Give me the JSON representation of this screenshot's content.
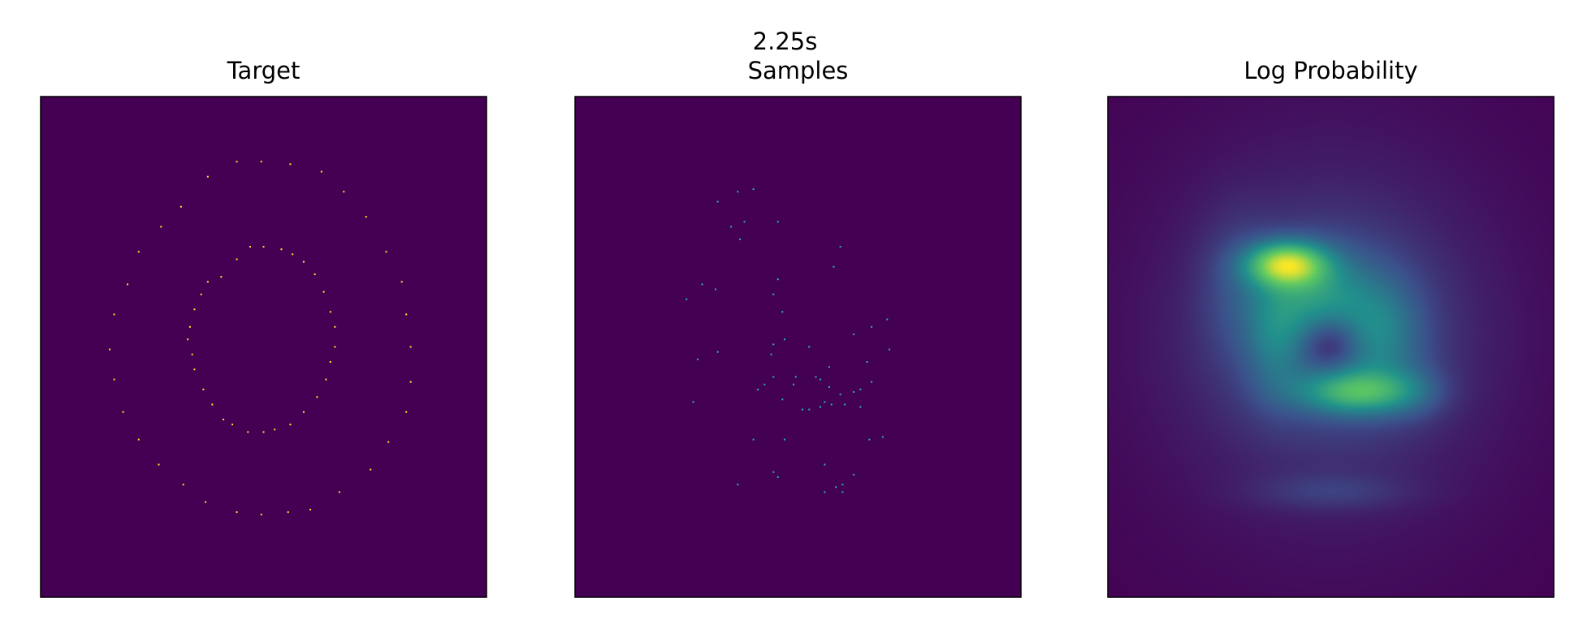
{
  "figure": {
    "suptitle": "2.25s"
  },
  "chart_data": [
    {
      "type": "scatter",
      "title": "Target",
      "background": "#440154",
      "point_color": "#fde725",
      "axes_visible": false,
      "xlim": [
        -1,
        1
      ],
      "ylim": [
        -1,
        1
      ],
      "series": [
        {
          "points": [
            [
              -0.12,
              0.74
            ],
            [
              -0.01,
              0.74
            ],
            [
              0.12,
              0.73
            ],
            [
              0.26,
              0.7
            ],
            [
              0.36,
              0.62
            ],
            [
              0.46,
              0.52
            ],
            [
              0.55,
              0.38
            ],
            [
              0.62,
              0.26
            ],
            [
              0.64,
              0.13
            ],
            [
              0.66,
              0.0
            ],
            [
              0.66,
              -0.14
            ],
            [
              0.64,
              -0.26
            ],
            [
              0.56,
              -0.38
            ],
            [
              0.48,
              -0.49
            ],
            [
              0.34,
              -0.58
            ],
            [
              0.21,
              -0.65
            ],
            [
              0.11,
              -0.66
            ],
            [
              -0.01,
              -0.67
            ],
            [
              -0.12,
              -0.66
            ],
            [
              -0.26,
              -0.62
            ],
            [
              -0.36,
              -0.55
            ],
            [
              -0.47,
              -0.47
            ],
            [
              -0.56,
              -0.37
            ],
            [
              -0.63,
              -0.26
            ],
            [
              -0.67,
              -0.13
            ],
            [
              -0.69,
              -0.01
            ],
            [
              -0.67,
              0.13
            ],
            [
              -0.61,
              0.25
            ],
            [
              -0.56,
              0.38
            ],
            [
              -0.46,
              0.48
            ],
            [
              -0.37,
              0.56
            ],
            [
              -0.25,
              0.68
            ],
            [
              -0.06,
              0.4
            ],
            [
              0.0,
              0.4
            ],
            [
              0.08,
              0.39
            ],
            [
              0.13,
              0.37
            ],
            [
              0.18,
              0.34
            ],
            [
              0.23,
              0.29
            ],
            [
              0.27,
              0.22
            ],
            [
              0.3,
              0.14
            ],
            [
              0.32,
              0.08
            ],
            [
              0.32,
              0.0
            ],
            [
              0.3,
              -0.06
            ],
            [
              0.28,
              -0.13
            ],
            [
              0.24,
              -0.2
            ],
            [
              0.18,
              -0.26
            ],
            [
              0.12,
              -0.31
            ],
            [
              0.05,
              -0.33
            ],
            [
              0.0,
              -0.34
            ],
            [
              -0.07,
              -0.34
            ],
            [
              -0.14,
              -0.31
            ],
            [
              -0.18,
              -0.29
            ],
            [
              -0.23,
              -0.23
            ],
            [
              -0.27,
              -0.17
            ],
            [
              -0.31,
              -0.09
            ],
            [
              -0.32,
              -0.03
            ],
            [
              -0.34,
              0.03
            ],
            [
              -0.33,
              0.08
            ],
            [
              -0.31,
              0.15
            ],
            [
              -0.28,
              0.21
            ],
            [
              -0.25,
              0.26
            ],
            [
              -0.19,
              0.28
            ],
            [
              -0.12,
              0.35
            ]
          ]
        }
      ]
    },
    {
      "type": "scatter",
      "title": "Samples",
      "background": "#440154",
      "point_color": "#26b3c4",
      "axes_visible": false,
      "xlim": [
        -1,
        1
      ],
      "ylim": [
        -1,
        1
      ],
      "series": [
        {
          "points": [
            [
              -0.27,
              0.62
            ],
            [
              -0.2,
              0.63
            ],
            [
              -0.36,
              0.58
            ],
            [
              -0.24,
              0.5
            ],
            [
              -0.3,
              0.48
            ],
            [
              -0.09,
              0.5
            ],
            [
              -0.26,
              0.43
            ],
            [
              0.19,
              0.4
            ],
            [
              0.16,
              0.32
            ],
            [
              -0.43,
              0.25
            ],
            [
              -0.37,
              0.23
            ],
            [
              -0.09,
              0.27
            ],
            [
              -0.11,
              0.21
            ],
            [
              -0.5,
              0.19
            ],
            [
              -0.07,
              0.14
            ],
            [
              0.4,
              0.11
            ],
            [
              0.33,
              0.08
            ],
            [
              0.25,
              0.05
            ],
            [
              -0.06,
              0.03
            ],
            [
              -0.11,
              0.01
            ],
            [
              0.05,
              0.0
            ],
            [
              0.41,
              -0.01
            ],
            [
              -0.36,
              -0.02
            ],
            [
              -0.12,
              -0.03
            ],
            [
              -0.45,
              -0.05
            ],
            [
              0.31,
              -0.06
            ],
            [
              0.14,
              -0.08
            ],
            [
              -0.11,
              -0.12
            ],
            [
              -0.01,
              -0.12
            ],
            [
              0.08,
              -0.12
            ],
            [
              0.1,
              -0.13
            ],
            [
              -0.15,
              -0.15
            ],
            [
              -0.02,
              -0.15
            ],
            [
              0.14,
              -0.16
            ],
            [
              0.33,
              -0.14
            ],
            [
              0.28,
              -0.17
            ],
            [
              -0.18,
              -0.17
            ],
            [
              0.25,
              -0.18
            ],
            [
              0.19,
              -0.19
            ],
            [
              -0.47,
              -0.22
            ],
            [
              0.12,
              -0.22
            ],
            [
              -0.07,
              -0.21
            ],
            [
              0.21,
              -0.23
            ],
            [
              0.15,
              -0.23
            ],
            [
              0.1,
              -0.24
            ],
            [
              0.05,
              -0.25
            ],
            [
              0.02,
              -0.25
            ],
            [
              0.28,
              -0.24
            ],
            [
              -0.2,
              -0.37
            ],
            [
              -0.06,
              -0.37
            ],
            [
              0.38,
              -0.36
            ],
            [
              0.32,
              -0.37
            ],
            [
              0.12,
              -0.47
            ],
            [
              -0.11,
              -0.5
            ],
            [
              0.25,
              -0.51
            ],
            [
              -0.09,
              -0.52
            ],
            [
              -0.27,
              -0.55
            ],
            [
              0.2,
              -0.55
            ],
            [
              0.17,
              -0.56
            ],
            [
              0.2,
              -0.58
            ],
            [
              0.12,
              -0.58
            ]
          ]
        }
      ]
    },
    {
      "type": "heatmap",
      "title": "Log Probability",
      "colormap": "viridis",
      "axes_visible": false,
      "xlim": [
        -1,
        1
      ],
      "ylim": [
        -1,
        1
      ],
      "components": [
        {
          "x": 0.0,
          "y": 0.05,
          "sx": 0.56,
          "sy": 0.56,
          "w": 0.14
        },
        {
          "x": 0.0,
          "y": 0.05,
          "sx": 0.32,
          "sy": 0.28,
          "w": 0.22
        },
        {
          "x": -0.2,
          "y": 0.33,
          "sx": 0.12,
          "sy": 0.06,
          "w": 0.95
        },
        {
          "x": 0.12,
          "y": -0.18,
          "sx": 0.18,
          "sy": 0.06,
          "w": 0.62
        },
        {
          "x": -0.08,
          "y": 0.2,
          "sx": 0.16,
          "sy": 0.13,
          "w": 0.35
        },
        {
          "x": 0.22,
          "y": 0.05,
          "sx": 0.13,
          "sy": 0.16,
          "w": 0.28
        },
        {
          "x": -0.25,
          "y": 0.02,
          "sx": 0.09,
          "sy": 0.16,
          "w": 0.22
        },
        {
          "x": -0.42,
          "y": 0.25,
          "sx": 0.12,
          "sy": 0.2,
          "w": 0.12
        },
        {
          "x": 0.0,
          "y": -0.58,
          "sx": 0.24,
          "sy": 0.05,
          "w": 0.12
        },
        {
          "x": 0.38,
          "y": -0.18,
          "sx": 0.1,
          "sy": 0.08,
          "w": 0.1
        }
      ],
      "hole": {
        "x": 0.0,
        "y": 0.02,
        "sx": 0.1,
        "sy": 0.08,
        "w": 0.35
      }
    }
  ]
}
